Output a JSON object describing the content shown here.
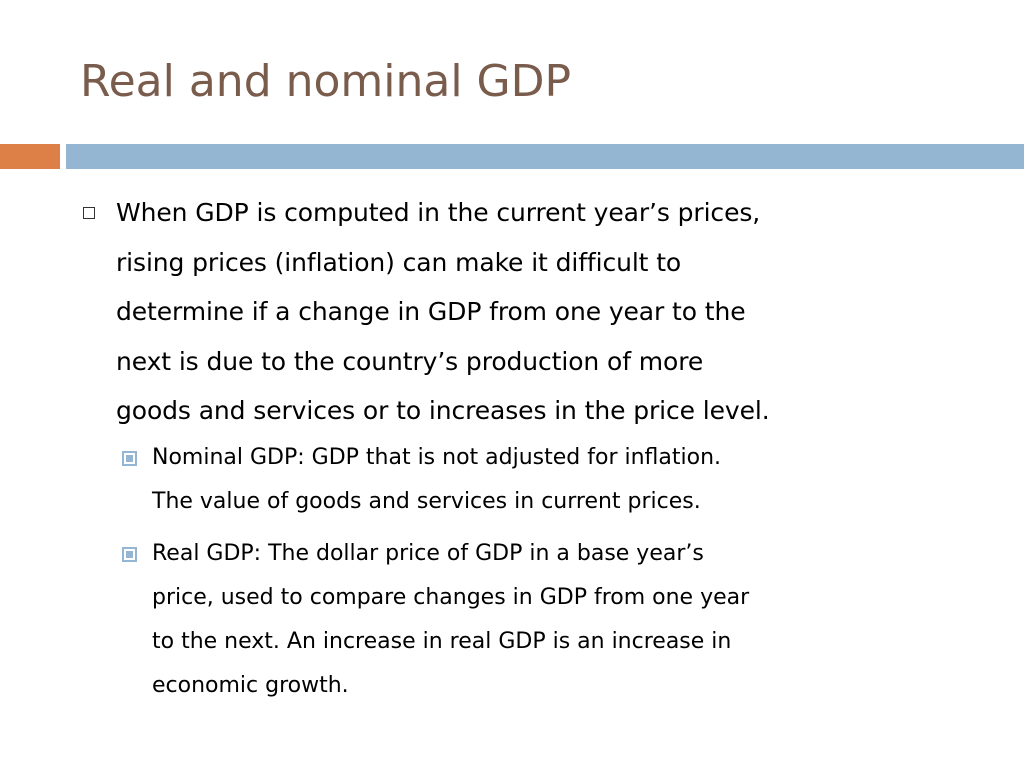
{
  "slide": {
    "title": "Real and nominal GDP",
    "colors": {
      "title": "#7a5c4c",
      "accent_orange": "#dd8047",
      "accent_blue": "#94b6d2"
    },
    "bullets": [
      {
        "level": 1,
        "bullet_icon": "hollow-square-icon",
        "lines": [
          "When GDP is computed in the current year’s prices,",
          "rising prices (inflation) can make it difficult to",
          "determine if a change in GDP from one year to the",
          "next is due to the country’s production of more",
          "goods and services or to increases in the price level."
        ]
      },
      {
        "level": 2,
        "bullet_icon": "filled-square-icon",
        "lines": [
          "Nominal GDP: GDP that is not adjusted for inflation.",
          "The value of goods and services in current prices."
        ]
      },
      {
        "level": 2,
        "bullet_icon": "filled-square-icon",
        "lines": [
          "Real GDP: The dollar price of GDP in a base year’s",
          "price, used to compare changes in GDP from one year",
          "to the next. An increase in real GDP is an increase in",
          "economic growth."
        ]
      }
    ]
  }
}
